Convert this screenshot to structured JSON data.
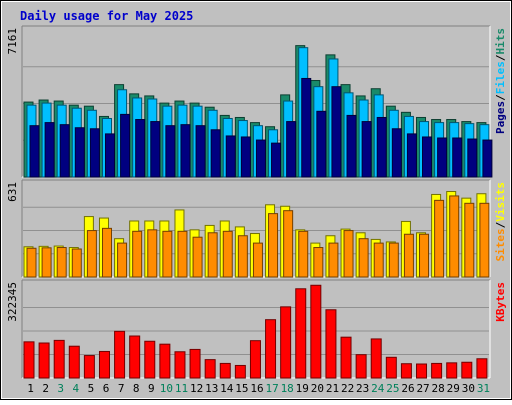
{
  "chart_data": {
    "type": "bar",
    "title": "Daily usage for May 2025",
    "categories": [
      "1",
      "2",
      "3",
      "4",
      "5",
      "6",
      "7",
      "8",
      "9",
      "10",
      "11",
      "12",
      "13",
      "14",
      "15",
      "16",
      "17",
      "18",
      "19",
      "20",
      "21",
      "22",
      "23",
      "24",
      "25",
      "26",
      "27",
      "28",
      "29",
      "30",
      "31"
    ],
    "weekend_days": [
      "3",
      "4",
      "10",
      "11",
      "17",
      "18",
      "24",
      "25",
      "31"
    ],
    "panels": [
      {
        "id": "top",
        "max_label": "7161",
        "ymax": 7161,
        "right_label": [
          "Pages",
          "Files",
          "Hits"
        ],
        "series": [
          {
            "name": "Hits",
            "color": "#1a8a6a",
            "values": [
              3650,
              3750,
              3700,
              3500,
              3450,
              2950,
              4500,
              4050,
              3950,
              3600,
              3700,
              3600,
              3400,
              3000,
              2900,
              2650,
              2450,
              4000,
              6400,
              4700,
              5950,
              4500,
              3950,
              4300,
              3450,
              3150,
              2900,
              2800,
              2800,
              2700,
              2650
            ]
          },
          {
            "name": "Files",
            "color": "#00bfff",
            "values": [
              3500,
              3600,
              3500,
              3350,
              3250,
              2850,
              4250,
              3850,
              3800,
              3450,
              3500,
              3450,
              3250,
              2850,
              2750,
              2500,
              2300,
              3700,
              6300,
              4400,
              5750,
              4100,
              3750,
              4000,
              3250,
              2950,
              2700,
              2650,
              2650,
              2600,
              2550
            ]
          },
          {
            "name": "Pages",
            "color": "#000080",
            "values": [
              2500,
              2650,
              2550,
              2400,
              2350,
              2100,
              3050,
              2800,
              2700,
              2500,
              2550,
              2500,
              2300,
              2000,
              1950,
              1800,
              1650,
              2700,
              4800,
              3200,
              4400,
              3000,
              2700,
              2900,
              2350,
              2100,
              1950,
              1900,
              1900,
              1850,
              1800
            ]
          }
        ]
      },
      {
        "id": "middle",
        "max_label": "631",
        "ymax": 631,
        "right_label": [
          "Sites",
          "Visits"
        ],
        "series": [
          {
            "name": "Visits",
            "color": "#ffff00",
            "values": [
              205,
              208,
              210,
              200,
              410,
              400,
              260,
              380,
              380,
              380,
              455,
              320,
              350,
              380,
              340,
              295,
              490,
              480,
              320,
              230,
              280,
              325,
              300,
              255,
              238,
              377,
              300,
              560,
              580,
              535,
              565
            ]
          },
          {
            "name": "Sites",
            "color": "#ff8c00",
            "values": [
              195,
              198,
              200,
              190,
              315,
              330,
              230,
              310,
              320,
              310,
              310,
              270,
              300,
              310,
              280,
              230,
              430,
              450,
              310,
              200,
              230,
              315,
              260,
              230,
              230,
              290,
              290,
              520,
              550,
              500,
              500
            ]
          }
        ]
      },
      {
        "id": "bottom",
        "max_label": "322345",
        "ymax": 322345,
        "right_label": [
          "KBytes"
        ],
        "series": [
          {
            "name": "KBytes",
            "color": "#ff0000",
            "values": [
              124000,
              120000,
              129000,
              109000,
              77000,
              91000,
              160000,
              144000,
              126000,
              116000,
              90000,
              98000,
              63000,
              50000,
              43000,
              128000,
              200000,
              244000,
              306000,
              318000,
              234000,
              140000,
              80000,
              134000,
              71000,
              49000,
              48000,
              50000,
              52000,
              54000,
              66000
            ]
          }
        ]
      }
    ]
  }
}
